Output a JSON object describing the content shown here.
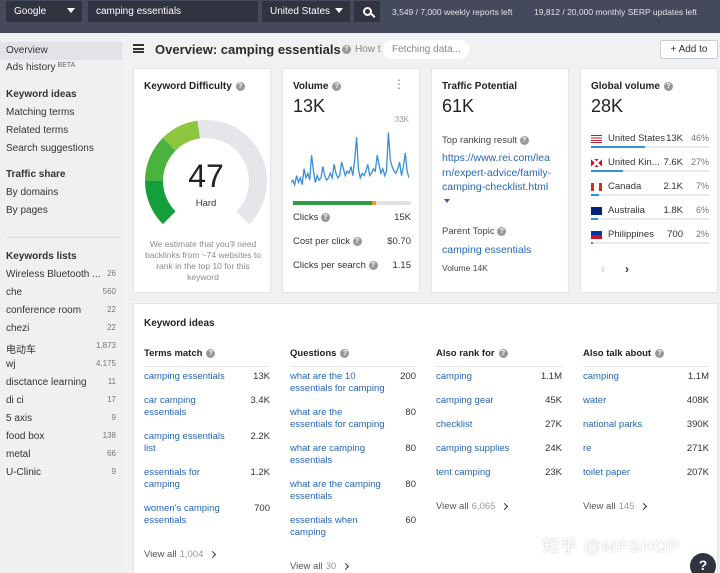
{
  "topbar": {
    "engine": "Google",
    "query": "camping essentials",
    "country": "United States",
    "weekly_reports": "3,549 / 7,000 weekly reports left",
    "serp_updates": "19,812 / 20,000 monthly SERP updates left"
  },
  "sidebar": {
    "overview": "Overview",
    "ads_history": "Ads history",
    "beta": "BETA",
    "keyword_ideas_head": "Keyword ideas",
    "matching_terms": "Matching terms",
    "related_terms": "Related terms",
    "search_suggestions": "Search suggestions",
    "traffic_share_head": "Traffic share",
    "by_domains": "By domains",
    "by_pages": "By pages",
    "keywords_lists_head": "Keywords lists",
    "lists": [
      {
        "name": "Wireless Bluetooth ...",
        "count": "26"
      },
      {
        "name": "che",
        "count": "560"
      },
      {
        "name": "conference room",
        "count": "22"
      },
      {
        "name": "chezi",
        "count": "22"
      },
      {
        "name": "电动车",
        "count": "1,873"
      },
      {
        "name": "wj",
        "count": "4,175"
      },
      {
        "name": "disctance learning",
        "count": "11"
      },
      {
        "name": "di ci",
        "count": "17"
      },
      {
        "name": "5 axis",
        "count": "9"
      },
      {
        "name": "food box",
        "count": "138"
      },
      {
        "name": "metal",
        "count": "66"
      },
      {
        "name": "U-Clinic",
        "count": "9"
      }
    ]
  },
  "header": {
    "title": "Overview: camping essentials",
    "how_to": "How t",
    "fetching": "Fetching data...",
    "add_to": "+ Add to"
  },
  "kd": {
    "title": "Keyword Difficulty",
    "value": "47",
    "level": "Hard",
    "gauge_fraction": 0.47,
    "note": "We estimate that you'll need backlinks from ~74 websites to rank in the top 10 for this keyword"
  },
  "volume": {
    "title": "Volume",
    "value": "13K",
    "axis_max": "33K",
    "clicks_label": "Clicks",
    "clicks_value": "15K",
    "cpc_label": "Cost per click",
    "cpc_value": "$0.70",
    "cps_label": "Clicks per search",
    "cps_value": "1.15",
    "trend": [
      6,
      7,
      5,
      9,
      6,
      8,
      5,
      12,
      8,
      10,
      7,
      18,
      11,
      6,
      9,
      7,
      8,
      13,
      9,
      7,
      8,
      10,
      8,
      14,
      10,
      8,
      9,
      15,
      12,
      9,
      11,
      10,
      13,
      9,
      16,
      26,
      12,
      8,
      10,
      9,
      11,
      14,
      9,
      10,
      12,
      11,
      18,
      14,
      10,
      12,
      9,
      11,
      28,
      16,
      13,
      11,
      10,
      12,
      15,
      9,
      13,
      19,
      11,
      8
    ]
  },
  "tp": {
    "title": "Traffic Potential",
    "value": "61K",
    "top_result_label": "Top ranking result",
    "url_lines": [
      "https://www.rei.com/lea",
      "rn/expert-advice/family-",
      "camping-checklist.html"
    ],
    "parent_topic_label": "Parent Topic",
    "parent_topic": "camping essentials",
    "parent_volume": "Volume 14K"
  },
  "gv": {
    "title": "Global volume",
    "value": "28K",
    "countries": [
      {
        "name": "United States",
        "volume": "13K",
        "pct": "46%",
        "share": 0.46
      },
      {
        "name": "United Kin...",
        "volume": "7.6K",
        "pct": "27%",
        "share": 0.27
      },
      {
        "name": "Canada",
        "volume": "2.1K",
        "pct": "7%",
        "share": 0.07
      },
      {
        "name": "Australia",
        "volume": "1.8K",
        "pct": "6%",
        "share": 0.06
      },
      {
        "name": "Philippines",
        "volume": "700",
        "pct": "2%",
        "share": 0.02
      }
    ]
  },
  "keyword_ideas": {
    "title": "Keyword ideas",
    "columns": [
      {
        "heading": "Terms match",
        "rows": [
          {
            "kw": [
              "camping essentials"
            ],
            "v": "13K"
          },
          {
            "kw": [
              "car camping",
              "essentials"
            ],
            "v": "3.4K"
          },
          {
            "kw": [
              "camping essentials",
              "list"
            ],
            "v": "2.2K"
          },
          {
            "kw": [
              "essentials for",
              "camping"
            ],
            "v": "1.2K"
          },
          {
            "kw": [
              "women's camping",
              "essentials"
            ],
            "v": "700"
          }
        ],
        "view_all": "View all",
        "count": "1,004"
      },
      {
        "heading": "Questions",
        "rows": [
          {
            "kw": [
              "what are the 10",
              "essentials for camping"
            ],
            "v": "200"
          },
          {
            "kw": [
              "what are the",
              "essentials for camping"
            ],
            "v": "80"
          },
          {
            "kw": [
              "what are camping",
              "essentials"
            ],
            "v": "80"
          },
          {
            "kw": [
              "what are the camping",
              "essentials"
            ],
            "v": "80"
          },
          {
            "kw": [
              "essentials when",
              "camping"
            ],
            "v": "60"
          }
        ],
        "view_all": "View all",
        "count": "30"
      },
      {
        "heading": "Also rank for",
        "rows": [
          {
            "kw": [
              "camping"
            ],
            "v": "1.1M"
          },
          {
            "kw": [
              "camping gear"
            ],
            "v": "45K"
          },
          {
            "kw": [
              "checklist"
            ],
            "v": "27K"
          },
          {
            "kw": [
              "camping supplies"
            ],
            "v": "24K"
          },
          {
            "kw": [
              "tent camping"
            ],
            "v": "23K"
          }
        ],
        "view_all": "View all",
        "count": "6,065"
      },
      {
        "heading": "Also talk about",
        "rows": [
          {
            "kw": [
              "camping"
            ],
            "v": "1.1M"
          },
          {
            "kw": [
              "water"
            ],
            "v": "408K"
          },
          {
            "kw": [
              "national parks"
            ],
            "v": "390K"
          },
          {
            "kw": [
              "re"
            ],
            "v": "271K"
          },
          {
            "kw": [
              "toilet paper"
            ],
            "v": "207K"
          }
        ],
        "view_all": "View all",
        "count": "145"
      }
    ]
  },
  "watermark": "知乎 @MFSHOP",
  "help": "?"
}
